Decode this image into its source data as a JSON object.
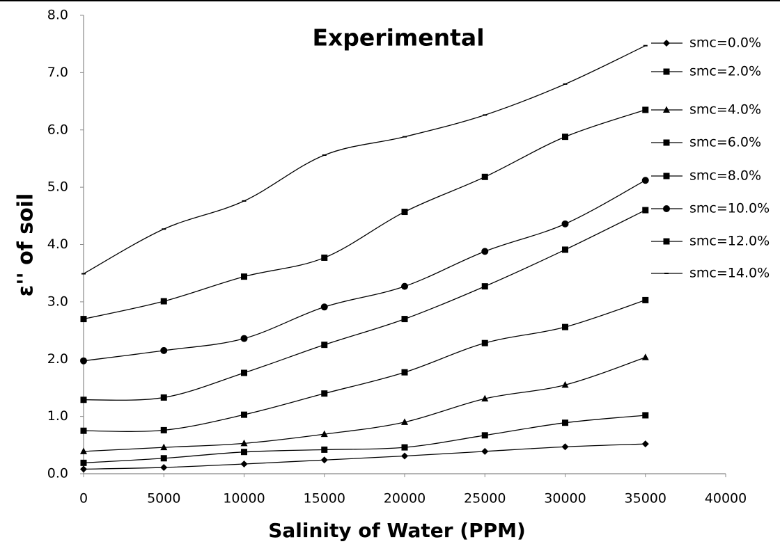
{
  "chart_data": {
    "type": "line",
    "title": "Experimental",
    "xlabel": "Salinity of Water (PPM)",
    "ylabel": "ε'' of soil",
    "x": [
      0,
      5000,
      10000,
      15000,
      20000,
      25000,
      30000,
      35000
    ],
    "xlim": [
      0,
      40000
    ],
    "xticks": [
      0,
      5000,
      10000,
      15000,
      20000,
      25000,
      30000,
      35000,
      40000
    ],
    "ylim": [
      0,
      8
    ],
    "yticks": [
      {
        "value": 0,
        "label": "0.0"
      },
      {
        "value": 1,
        "label": "1.0"
      },
      {
        "value": 2,
        "label": "2.0"
      },
      {
        "value": 3,
        "label": "3.0"
      },
      {
        "value": 4,
        "label": "4.0"
      },
      {
        "value": 5,
        "label": "5.0"
      },
      {
        "value": 6,
        "label": "6.0"
      },
      {
        "value": 7,
        "label": "7.0"
      },
      {
        "value": 8,
        "label": "8.0"
      }
    ],
    "grid": false,
    "legend": "right",
    "smooth": true,
    "series": [
      {
        "name": "smc=0.0%",
        "color": "#000000",
        "marker": "diamond",
        "values": [
          0.08,
          0.11,
          0.17,
          0.24,
          0.31,
          0.39,
          0.47,
          0.52
        ]
      },
      {
        "name": "smc=2.0%",
        "color": "#000000",
        "marker": "square",
        "values": [
          0.19,
          0.27,
          0.38,
          0.42,
          0.46,
          0.67,
          0.89,
          1.02
        ]
      },
      {
        "name": "smc=4.0%",
        "color": "#000000",
        "marker": "triangle",
        "values": [
          0.39,
          0.46,
          0.53,
          0.69,
          0.9,
          1.31,
          1.55,
          2.03
        ]
      },
      {
        "name": "smc=6.0%",
        "color": "#000000",
        "marker": "square",
        "values": [
          0.75,
          0.76,
          1.03,
          1.4,
          1.77,
          2.28,
          2.56,
          3.03
        ]
      },
      {
        "name": "smc=8.0%",
        "color": "#000000",
        "marker": "square",
        "values": [
          1.29,
          1.33,
          1.76,
          2.25,
          2.7,
          3.27,
          3.91,
          4.6
        ]
      },
      {
        "name": "smc=10.0%",
        "color": "#000000",
        "marker": "circle",
        "values": [
          1.97,
          2.15,
          2.36,
          2.91,
          3.27,
          3.88,
          4.36,
          5.12
        ]
      },
      {
        "name": "smc=12.0%",
        "color": "#000000",
        "marker": "square",
        "values": [
          2.7,
          3.01,
          3.44,
          3.77,
          4.57,
          5.18,
          5.88,
          6.35
        ]
      },
      {
        "name": "smc=14.0%",
        "color": "#000000",
        "marker": "dash",
        "values": [
          3.49,
          4.27,
          4.76,
          5.56,
          5.88,
          6.26,
          6.8,
          7.47
        ]
      }
    ]
  }
}
